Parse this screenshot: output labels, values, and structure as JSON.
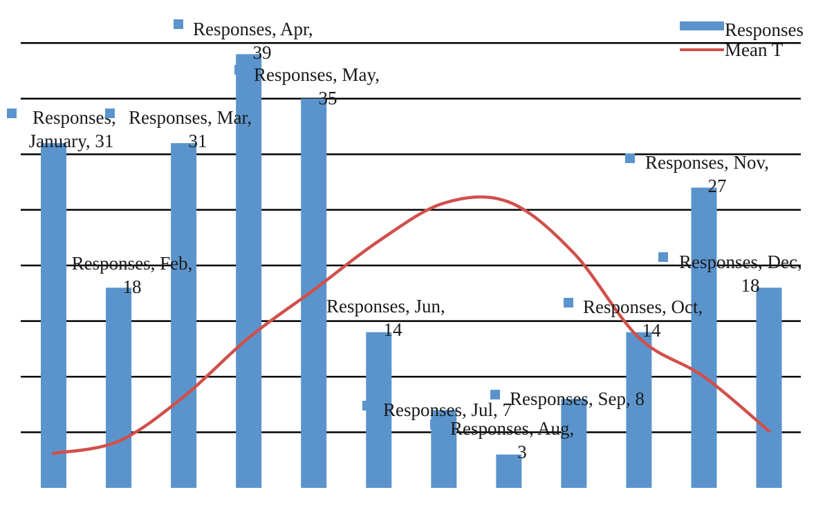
{
  "chart_data": {
    "type": "bar",
    "title": "",
    "xlabel": "",
    "ylabel": "",
    "ylim": [
      0,
      43
    ],
    "grid": true,
    "legend_position": "top-right",
    "categories": [
      "January",
      "Feb",
      "Mar",
      "Apr",
      "May",
      "Jun",
      "Jul",
      "Aug",
      "Sep",
      "Oct",
      "Nov",
      "Dec"
    ],
    "series": [
      {
        "name": "Responses",
        "type": "bar",
        "color": "#5b94cc",
        "values": [
          31,
          18,
          31,
          39,
          35,
          14,
          7,
          3,
          8,
          14,
          27,
          18
        ],
        "data_labels": [
          [
            "Responses,",
            "January, 31"
          ],
          [
            "Responses, Feb,",
            "18"
          ],
          [
            "Responses, Mar,",
            "31"
          ],
          [
            "Responses, Apr,",
            "39"
          ],
          [
            "Responses, May,",
            "35"
          ],
          [
            "Responses, Jun,",
            "14"
          ],
          [
            "Responses, Jul, 7"
          ],
          [
            "Responses, Aug,",
            "3"
          ],
          [
            "Responses, Sep, 8"
          ],
          [
            "Responses, Oct,",
            "14"
          ],
          [
            "Responses, Nov,",
            "27"
          ],
          [
            "Responses, Dec,",
            "18"
          ]
        ]
      },
      {
        "name": "Mean T",
        "type": "line",
        "color": "#d0504a",
        "values": [
          3.1,
          4.2,
          8.2,
          13.5,
          17.8,
          22.2,
          25.6,
          25.7,
          21.1,
          13.5,
          10.0,
          5.1
        ]
      }
    ]
  }
}
